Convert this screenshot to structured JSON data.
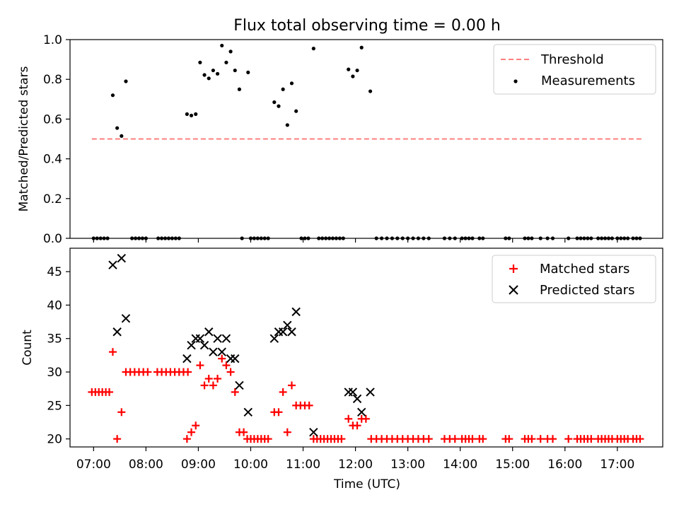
{
  "figure": {
    "title": "Flux total observing time = 0.00 h",
    "xlabel": "Time (UTC)",
    "xticks": [
      "07:00",
      "08:00",
      "09:00",
      "10:00",
      "11:00",
      "12:00",
      "13:00",
      "14:00",
      "15:00",
      "16:00",
      "17:00"
    ]
  },
  "colors": {
    "threshold": "#ff7f7f",
    "measurement": "#000000",
    "matched": "#ff0000",
    "predicted": "#000000"
  },
  "chart_data": [
    {
      "type": "scatter",
      "ylabel": "Matched/Predicted stars",
      "ylim": [
        0,
        1.0
      ],
      "yticks": [
        "0.0",
        "0.2",
        "0.4",
        "0.6",
        "0.8",
        "1.0"
      ],
      "xlim": [
        "06:33",
        "17:52"
      ],
      "legend": "top-right",
      "threshold": {
        "name": "Threshold",
        "value": 0.5,
        "x_start": "06:58",
        "x_end": "17:30"
      },
      "measurements": {
        "name": "Measurements",
        "points": [
          [
            "07:22",
            0.72
          ],
          [
            "07:27",
            0.555
          ],
          [
            "07:32",
            0.515
          ],
          [
            "07:37",
            0.79
          ],
          [
            "08:47",
            0.625
          ],
          [
            "08:52",
            0.618
          ],
          [
            "08:57",
            0.625
          ],
          [
            "09:02",
            0.885
          ],
          [
            "09:07",
            0.822
          ],
          [
            "09:12",
            0.805
          ],
          [
            "09:17",
            0.845
          ],
          [
            "09:22",
            0.828
          ],
          [
            "09:27",
            0.97
          ],
          [
            "09:32",
            0.885
          ],
          [
            "09:37",
            0.94
          ],
          [
            "09:42",
            0.845
          ],
          [
            "09:47",
            0.75
          ],
          [
            "09:57",
            0.835
          ],
          [
            "10:27",
            0.685
          ],
          [
            "10:32",
            0.665
          ],
          [
            "10:37",
            0.75
          ],
          [
            "10:42",
            0.57
          ],
          [
            "10:47",
            0.78
          ],
          [
            "10:52",
            0.64
          ],
          [
            "11:12",
            0.955
          ],
          [
            "11:52",
            0.85
          ],
          [
            "11:57",
            0.815
          ],
          [
            "12:02",
            0.845
          ],
          [
            "12:07",
            0.96
          ],
          [
            "12:17",
            0.74
          ],
          [
            "07:00",
            0
          ],
          [
            "07:04",
            0
          ],
          [
            "07:08",
            0
          ],
          [
            "07:12",
            0
          ],
          [
            "07:16",
            0
          ],
          [
            "07:44",
            0
          ],
          [
            "07:48",
            0
          ],
          [
            "07:52",
            0
          ],
          [
            "07:56",
            0
          ],
          [
            "08:00",
            0
          ],
          [
            "08:14",
            0
          ],
          [
            "08:18",
            0
          ],
          [
            "08:22",
            0
          ],
          [
            "08:26",
            0
          ],
          [
            "08:30",
            0
          ],
          [
            "08:34",
            0
          ],
          [
            "08:38",
            0
          ],
          [
            "09:50",
            0
          ],
          [
            "10:00",
            0
          ],
          [
            "10:04",
            0
          ],
          [
            "10:08",
            0
          ],
          [
            "10:12",
            0
          ],
          [
            "10:16",
            0
          ],
          [
            "10:20",
            0
          ],
          [
            "10:58",
            0
          ],
          [
            "11:02",
            0
          ],
          [
            "11:06",
            0
          ],
          [
            "11:18",
            0
          ],
          [
            "11:22",
            0
          ],
          [
            "11:26",
            0
          ],
          [
            "11:30",
            0
          ],
          [
            "11:34",
            0
          ],
          [
            "11:38",
            0
          ],
          [
            "11:42",
            0
          ],
          [
            "11:46",
            0
          ],
          [
            "12:24",
            0
          ],
          [
            "12:30",
            0
          ],
          [
            "12:36",
            0
          ],
          [
            "12:42",
            0
          ],
          [
            "12:48",
            0
          ],
          [
            "12:54",
            0
          ],
          [
            "13:00",
            0
          ],
          [
            "13:06",
            0
          ],
          [
            "13:12",
            0
          ],
          [
            "13:18",
            0
          ],
          [
            "13:24",
            0
          ],
          [
            "13:42",
            0
          ],
          [
            "13:48",
            0
          ],
          [
            "13:54",
            0
          ],
          [
            "14:02",
            0
          ],
          [
            "14:06",
            0
          ],
          [
            "14:10",
            0
          ],
          [
            "14:14",
            0
          ],
          [
            "14:22",
            0
          ],
          [
            "14:26",
            0
          ],
          [
            "14:52",
            0
          ],
          [
            "14:56",
            0
          ],
          [
            "15:14",
            0
          ],
          [
            "15:18",
            0
          ],
          [
            "15:22",
            0
          ],
          [
            "15:32",
            0
          ],
          [
            "15:40",
            0
          ],
          [
            "15:46",
            0
          ],
          [
            "16:04",
            0
          ],
          [
            "16:14",
            0
          ],
          [
            "16:18",
            0
          ],
          [
            "16:22",
            0
          ],
          [
            "16:26",
            0
          ],
          [
            "16:30",
            0
          ],
          [
            "16:38",
            0
          ],
          [
            "16:42",
            0
          ],
          [
            "16:46",
            0
          ],
          [
            "16:50",
            0
          ],
          [
            "16:54",
            0
          ],
          [
            "17:00",
            0
          ],
          [
            "17:04",
            0
          ],
          [
            "17:08",
            0
          ],
          [
            "17:12",
            0
          ],
          [
            "17:18",
            0
          ],
          [
            "17:22",
            0
          ],
          [
            "17:26",
            0
          ]
        ]
      }
    },
    {
      "type": "scatter",
      "ylabel": "Count",
      "ylim": [
        18.8,
        48.5
      ],
      "yticks": [
        20,
        25,
        30,
        35,
        40,
        45
      ],
      "xlim": [
        "06:33",
        "17:52"
      ],
      "legend": "top-right",
      "series": [
        {
          "name": "Matched stars",
          "marker": "plus",
          "points": [
            [
              "06:58",
              27
            ],
            [
              "07:02",
              27
            ],
            [
              "07:06",
              27
            ],
            [
              "07:10",
              27
            ],
            [
              "07:14",
              27
            ],
            [
              "07:18",
              27
            ],
            [
              "07:22",
              33
            ],
            [
              "07:27",
              20
            ],
            [
              "07:32",
              24
            ],
            [
              "07:37",
              30
            ],
            [
              "07:42",
              30
            ],
            [
              "07:47",
              30
            ],
            [
              "07:52",
              30
            ],
            [
              "07:57",
              30
            ],
            [
              "08:02",
              30
            ],
            [
              "08:13",
              30
            ],
            [
              "08:18",
              30
            ],
            [
              "08:23",
              30
            ],
            [
              "08:28",
              30
            ],
            [
              "08:33",
              30
            ],
            [
              "08:38",
              30
            ],
            [
              "08:43",
              30
            ],
            [
              "08:48",
              30
            ],
            [
              "08:47",
              20
            ],
            [
              "08:52",
              21
            ],
            [
              "08:57",
              22
            ],
            [
              "09:02",
              31
            ],
            [
              "09:07",
              28
            ],
            [
              "09:12",
              29
            ],
            [
              "09:17",
              28
            ],
            [
              "09:22",
              29
            ],
            [
              "09:27",
              32
            ],
            [
              "09:32",
              31
            ],
            [
              "09:37",
              30
            ],
            [
              "09:42",
              27
            ],
            [
              "09:47",
              21
            ],
            [
              "09:52",
              21
            ],
            [
              "09:56",
              20
            ],
            [
              "10:00",
              20
            ],
            [
              "10:04",
              20
            ],
            [
              "10:08",
              20
            ],
            [
              "10:12",
              20
            ],
            [
              "10:16",
              20
            ],
            [
              "10:20",
              20
            ],
            [
              "10:27",
              24
            ],
            [
              "10:32",
              24
            ],
            [
              "10:37",
              27
            ],
            [
              "10:42",
              21
            ],
            [
              "10:47",
              28
            ],
            [
              "10:52",
              25
            ],
            [
              "10:57",
              25
            ],
            [
              "11:02",
              25
            ],
            [
              "11:07",
              25
            ],
            [
              "11:12",
              20
            ],
            [
              "11:16",
              20
            ],
            [
              "11:20",
              20
            ],
            [
              "11:24",
              20
            ],
            [
              "11:28",
              20
            ],
            [
              "11:32",
              20
            ],
            [
              "11:36",
              20
            ],
            [
              "11:40",
              20
            ],
            [
              "11:44",
              20
            ],
            [
              "11:52",
              23
            ],
            [
              "11:57",
              22
            ],
            [
              "12:02",
              22
            ],
            [
              "12:07",
              23
            ],
            [
              "12:12",
              23
            ],
            [
              "12:18",
              20
            ],
            [
              "12:24",
              20
            ],
            [
              "12:30",
              20
            ],
            [
              "12:36",
              20
            ],
            [
              "12:42",
              20
            ],
            [
              "12:48",
              20
            ],
            [
              "12:54",
              20
            ],
            [
              "13:00",
              20
            ],
            [
              "13:06",
              20
            ],
            [
              "13:12",
              20
            ],
            [
              "13:18",
              20
            ],
            [
              "13:24",
              20
            ],
            [
              "13:42",
              20
            ],
            [
              "13:48",
              20
            ],
            [
              "13:54",
              20
            ],
            [
              "14:02",
              20
            ],
            [
              "14:06",
              20
            ],
            [
              "14:10",
              20
            ],
            [
              "14:14",
              20
            ],
            [
              "14:22",
              20
            ],
            [
              "14:26",
              20
            ],
            [
              "14:52",
              20
            ],
            [
              "14:56",
              20
            ],
            [
              "15:14",
              20
            ],
            [
              "15:18",
              20
            ],
            [
              "15:22",
              20
            ],
            [
              "15:32",
              20
            ],
            [
              "15:40",
              20
            ],
            [
              "15:46",
              20
            ],
            [
              "16:04",
              20
            ],
            [
              "16:14",
              20
            ],
            [
              "16:18",
              20
            ],
            [
              "16:22",
              20
            ],
            [
              "16:26",
              20
            ],
            [
              "16:30",
              20
            ],
            [
              "16:38",
              20
            ],
            [
              "16:42",
              20
            ],
            [
              "16:46",
              20
            ],
            [
              "16:50",
              20
            ],
            [
              "16:54",
              20
            ],
            [
              "17:00",
              20
            ],
            [
              "17:04",
              20
            ],
            [
              "17:08",
              20
            ],
            [
              "17:12",
              20
            ],
            [
              "17:18",
              20
            ],
            [
              "17:22",
              20
            ],
            [
              "17:26",
              20
            ]
          ]
        },
        {
          "name": "Predicted stars",
          "marker": "x",
          "points": [
            [
              "07:22",
              46
            ],
            [
              "07:27",
              36
            ],
            [
              "07:32",
              47
            ],
            [
              "07:37",
              38
            ],
            [
              "08:47",
              32
            ],
            [
              "08:52",
              34
            ],
            [
              "08:57",
              35
            ],
            [
              "09:02",
              35
            ],
            [
              "09:07",
              34
            ],
            [
              "09:12",
              36
            ],
            [
              "09:17",
              33
            ],
            [
              "09:22",
              35
            ],
            [
              "09:27",
              33
            ],
            [
              "09:32",
              35
            ],
            [
              "09:37",
              32
            ],
            [
              "09:42",
              32
            ],
            [
              "09:47",
              28
            ],
            [
              "09:57",
              24
            ],
            [
              "10:27",
              35
            ],
            [
              "10:32",
              36
            ],
            [
              "10:37",
              36
            ],
            [
              "10:42",
              37
            ],
            [
              "10:47",
              36
            ],
            [
              "10:52",
              39
            ],
            [
              "11:12",
              21
            ],
            [
              "11:52",
              27
            ],
            [
              "11:57",
              27
            ],
            [
              "12:02",
              26
            ],
            [
              "12:07",
              24
            ],
            [
              "12:17",
              27
            ]
          ]
        }
      ]
    }
  ]
}
